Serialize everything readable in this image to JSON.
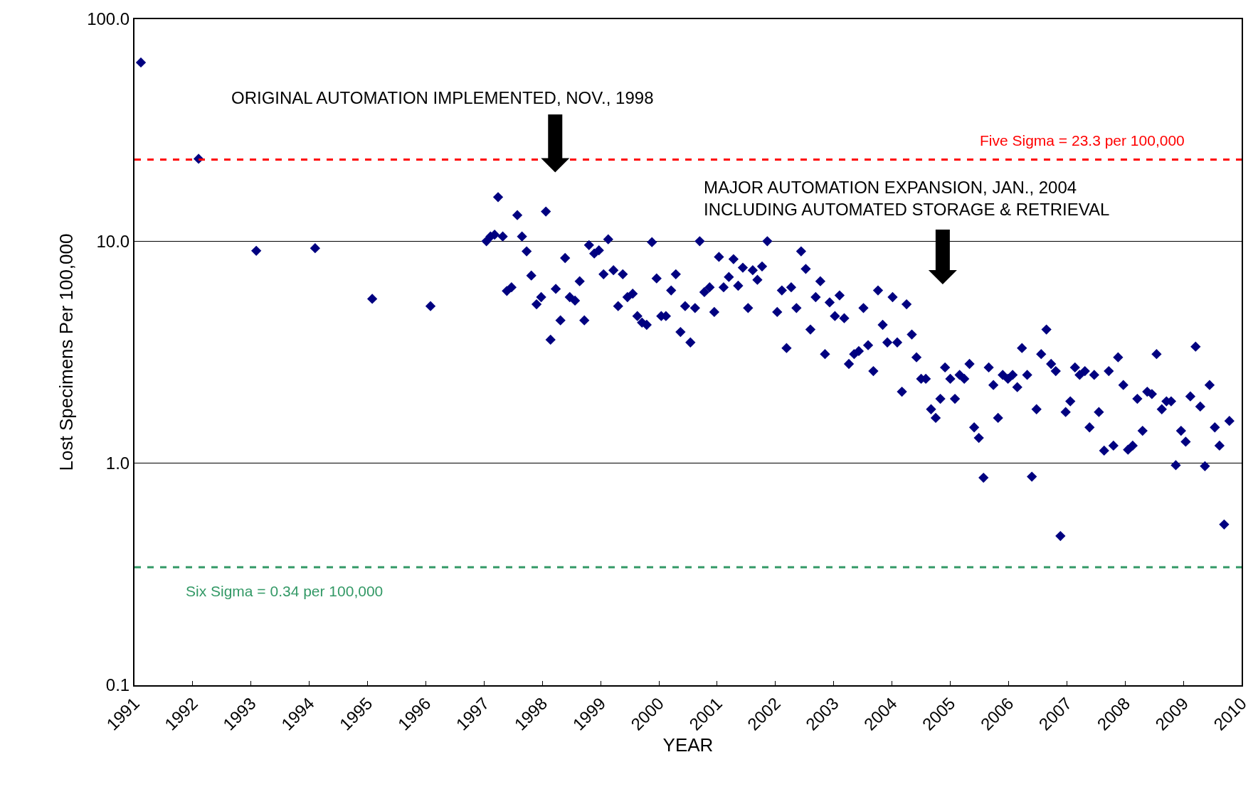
{
  "chart_data": {
    "type": "scatter",
    "xlabel": "YEAR",
    "ylabel": "Lost Specimens Per 100,000",
    "log": "y",
    "grid": "y",
    "legend": false,
    "marker": "diamond",
    "xlim": [
      1991,
      2010
    ],
    "xticks": [
      1991,
      1992,
      1993,
      1994,
      1995,
      1996,
      1997,
      1998,
      1999,
      2000,
      2001,
      2002,
      2003,
      2004,
      2005,
      2006,
      2007,
      2008,
      2009,
      2010
    ],
    "ylim": [
      0.1,
      100
    ],
    "yticks": [
      {
        "value": 0.1,
        "label": "0.1"
      },
      {
        "value": 1,
        "label": "1.0"
      },
      {
        "value": 10,
        "label": "10.0"
      },
      {
        "value": 100,
        "label": "100.0"
      }
    ],
    "annotations": [
      "ORIGINAL AUTOMATION IMPLEMENTED, NOV., 1998",
      "MAJOR AUTOMATION EXPANSION, JAN., 2004\nINCLUDING AUTOMATED STORAGE & RETRIEVAL"
    ],
    "ref_lines": [
      {
        "axis": "y",
        "value": 23.3,
        "label": "Five Sigma = 23.3 per 100,000",
        "color": "#ff0000",
        "line_style": "dashed"
      },
      {
        "axis": "y",
        "value": 0.34,
        "label": "Six Sigma = 0.34 per 100,000",
        "color": "#339966",
        "line_style": "dashed"
      }
    ],
    "series": [
      {
        "color": "#000080",
        "x": [
          1991.11,
          1992.1,
          1993.09,
          1994.1,
          1995.08,
          1996.08,
          1997.04,
          1997.11,
          1997.18,
          1997.24,
          1997.32,
          1997.39,
          1997.47,
          1997.57,
          1997.65,
          1997.73,
          1997.81,
          1997.9,
          1997.98,
          1998.06,
          1998.14,
          1998.23,
          1998.31,
          1998.39,
          1998.47,
          1998.56,
          1998.64,
          1998.72,
          1998.8,
          1998.89,
          1998.97,
          1999.05,
          1999.13,
          1999.22,
          1999.3,
          1999.38,
          1999.46,
          1999.55,
          1999.63,
          1999.71,
          1999.79,
          1999.88,
          1999.96,
          2000.04,
          2000.12,
          2000.21,
          2000.29,
          2000.37,
          2000.45,
          2000.54,
          2000.62,
          2000.7,
          2000.78,
          2000.87,
          2000.95,
          2001.03,
          2001.11,
          2001.2,
          2001.28,
          2001.36,
          2001.44,
          2001.53,
          2001.61,
          2001.69,
          2001.77,
          2001.86,
          2002.03,
          2002.11,
          2002.19,
          2002.27,
          2002.36,
          2002.44,
          2002.52,
          2002.6,
          2002.69,
          2002.77,
          2002.85,
          2002.93,
          2003.02,
          2003.1,
          2003.18,
          2003.26,
          2003.35,
          2003.43,
          2003.51,
          2003.59,
          2003.68,
          2003.76,
          2003.84,
          2003.92,
          2004.01,
          2004.09,
          2004.17,
          2004.25,
          2004.34,
          2004.42,
          2004.5,
          2004.58,
          2004.67,
          2004.75,
          2004.83,
          2004.91,
          2005.0,
          2005.08,
          2005.16,
          2005.24,
          2005.33,
          2005.41,
          2005.49,
          2005.57,
          2005.66,
          2005.74,
          2005.82,
          2005.9,
          2005.99,
          2006.07,
          2006.15,
          2006.23,
          2006.32,
          2006.4,
          2006.48,
          2006.56,
          2006.65,
          2006.73,
          2006.81,
          2006.89,
          2006.98,
          2007.06,
          2007.14,
          2007.22,
          2007.31,
          2007.39,
          2007.47,
          2007.55,
          2007.64,
          2007.72,
          2007.8,
          2007.88,
          2007.97,
          2008.05,
          2008.13,
          2008.21,
          2008.3,
          2008.38,
          2008.46,
          2008.54,
          2008.63,
          2008.71,
          2008.79,
          2008.87,
          2008.96,
          2009.04,
          2009.12,
          2009.21,
          2009.29,
          2009.37,
          2009.45,
          2009.54,
          2009.62,
          2009.7,
          2009.79
        ],
        "values": [
          63.8,
          23.5,
          9.05,
          9.3,
          5.5,
          5.1,
          10.0,
          10.5,
          10.7,
          15.8,
          10.5,
          5.97,
          6.2,
          13.1,
          10.5,
          9.0,
          7.0,
          5.2,
          5.6,
          13.6,
          3.6,
          6.1,
          4.4,
          8.4,
          5.6,
          5.4,
          6.6,
          4.4,
          9.6,
          8.8,
          9.1,
          7.1,
          10.2,
          7.4,
          5.1,
          7.1,
          5.6,
          5.8,
          4.6,
          4.3,
          4.2,
          9.9,
          6.8,
          4.6,
          4.6,
          6.0,
          7.1,
          3.9,
          5.1,
          3.5,
          5.0,
          10.0,
          5.9,
          6.2,
          4.8,
          8.5,
          6.2,
          6.9,
          8.3,
          6.3,
          7.6,
          5.0,
          7.4,
          6.7,
          7.7,
          10.0,
          4.8,
          6.0,
          3.3,
          6.2,
          5.0,
          9.0,
          7.5,
          4.0,
          5.6,
          6.6,
          3.1,
          5.3,
          4.6,
          5.7,
          4.5,
          2.8,
          3.1,
          3.2,
          5.0,
          3.4,
          2.6,
          6.0,
          4.2,
          3.5,
          5.6,
          3.5,
          2.1,
          5.2,
          3.8,
          3.0,
          2.4,
          2.4,
          1.75,
          1.6,
          1.95,
          2.7,
          2.4,
          1.95,
          2.5,
          2.4,
          2.8,
          1.45,
          1.3,
          0.86,
          2.7,
          2.25,
          1.6,
          2.5,
          2.4,
          2.5,
          2.2,
          3.3,
          2.5,
          0.87,
          1.75,
          3.1,
          4.0,
          2.8,
          2.6,
          0.47,
          1.7,
          1.9,
          2.7,
          2.5,
          2.6,
          1.45,
          2.5,
          1.7,
          1.14,
          2.6,
          1.2,
          3.0,
          2.25,
          1.15,
          1.2,
          1.95,
          1.4,
          2.1,
          2.05,
          3.1,
          1.75,
          1.9,
          1.9,
          0.98,
          1.4,
          1.25,
          2.0,
          3.35,
          1.8,
          0.97,
          2.25,
          1.45,
          1.2,
          0.53,
          1.55
        ]
      }
    ]
  }
}
